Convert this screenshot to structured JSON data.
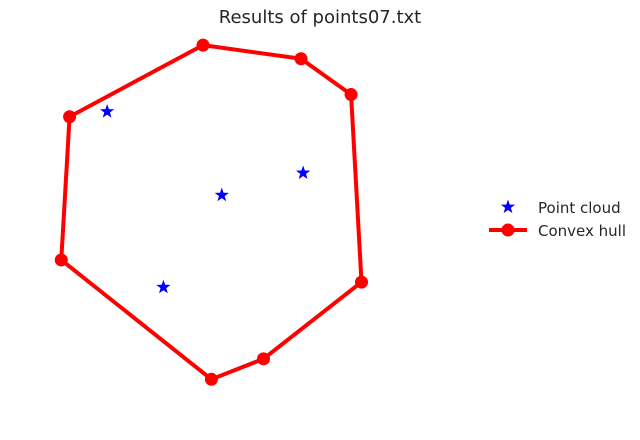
{
  "chart_data": {
    "type": "scatter",
    "title": "Results of points07.txt",
    "xlabel": "",
    "ylabel": "",
    "axes_visible": false,
    "grid": false,
    "xlim": [
      0,
      10
    ],
    "ylim": [
      0,
      10
    ],
    "legend": {
      "placement": "center-right",
      "entries": [
        "Point cloud",
        "Convex hull"
      ]
    },
    "series": [
      {
        "name": "Point cloud",
        "kind": "scatter",
        "marker": "star",
        "color": "#0000ff",
        "points": [
          {
            "x": 1.25,
            "y": 7.9
          },
          {
            "x": 4.0,
            "y": 5.45
          },
          {
            "x": 5.95,
            "y": 6.1
          },
          {
            "x": 2.6,
            "y": 2.75
          }
        ]
      },
      {
        "name": "Convex hull",
        "kind": "line",
        "marker": "circle",
        "color": "#ff0000",
        "closed": true,
        "points": [
          {
            "x": 0.35,
            "y": 7.75
          },
          {
            "x": 3.55,
            "y": 9.85
          },
          {
            "x": 5.9,
            "y": 9.45
          },
          {
            "x": 7.1,
            "y": 8.4
          },
          {
            "x": 7.35,
            "y": 2.9
          },
          {
            "x": 5.0,
            "y": 0.65
          },
          {
            "x": 3.75,
            "y": 0.05
          },
          {
            "x": 0.15,
            "y": 3.55
          }
        ]
      }
    ]
  }
}
